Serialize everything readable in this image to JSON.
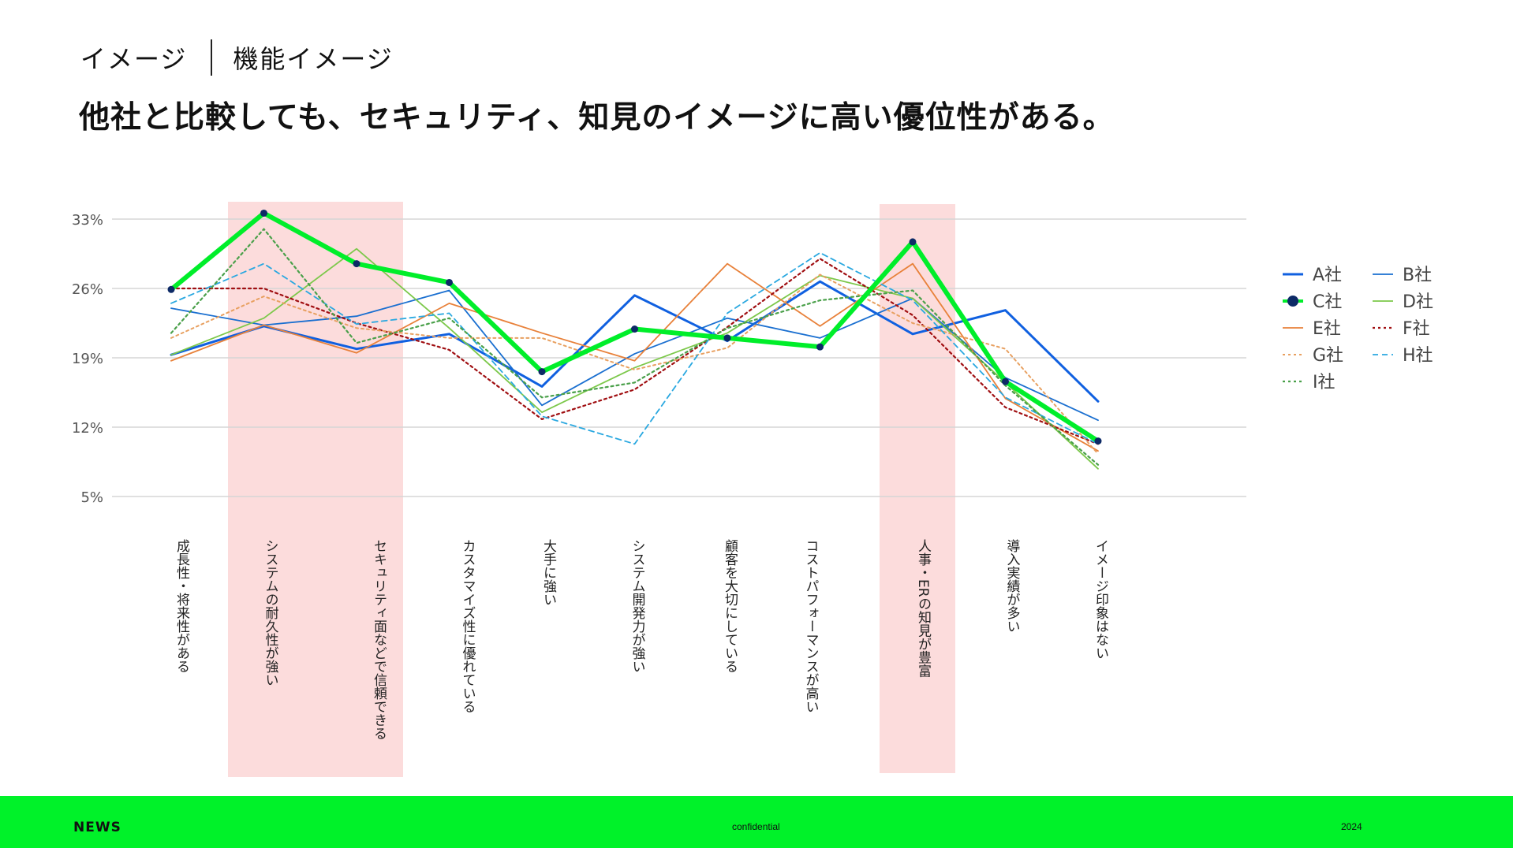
{
  "header": {
    "section": "イメージ",
    "subsection": "機能イメージ",
    "headline": "他社と比較しても、セキュリティ、知見のイメージに高い優位性がある。"
  },
  "footer": {
    "brand": "NEWS",
    "confidential": "confidential",
    "year": "2024"
  },
  "chart_data": {
    "type": "line",
    "title": "",
    "xlabel": "",
    "ylabel": "",
    "ylim": [
      0,
      34
    ],
    "yticks": [
      5,
      12,
      19,
      26,
      33
    ],
    "ytick_labels": [
      "5%",
      "12%",
      "19%",
      "26%",
      "33%"
    ],
    "grid": true,
    "legend_position": "right",
    "highlight_categories": [
      1,
      2,
      8
    ],
    "highlight_color": "#fcdcdc",
    "categories": [
      "成長性・将来性がある",
      "システムの耐久性が強い",
      "セキュリティ面などで信頼できる",
      "カスタマイズ性に優れている",
      "大手に強い",
      "システム開発力が強い",
      "顧客を大切にしている",
      "コストパフォーマンスが高い",
      "人事・ERの知見が豊富",
      "導入実績が多い",
      "イメージ印象はない"
    ],
    "series": [
      {
        "name": "A社",
        "color": "#1060e0",
        "width": 3,
        "dash": "",
        "markers": false,
        "values": [
          19.3,
          22.2,
          19.9,
          21.4,
          16.1,
          25.3,
          20.7,
          26.7,
          21.4,
          23.8,
          14.6
        ]
      },
      {
        "name": "B社",
        "color": "#1a6fd0",
        "width": 1.8,
        "dash": "",
        "markers": false,
        "values": [
          24.0,
          22.3,
          23.2,
          25.8,
          14.2,
          19.4,
          23.0,
          21.0,
          25.0,
          17.0,
          12.7
        ]
      },
      {
        "name": "C社",
        "color": "#00ee2a",
        "width": 6,
        "dash": "",
        "markers": true,
        "marker_color": "#0d2a66",
        "values": [
          25.9,
          33.6,
          28.5,
          26.6,
          17.6,
          21.9,
          21.0,
          20.1,
          30.7,
          16.6,
          10.6
        ]
      },
      {
        "name": "D社",
        "color": "#7cc84a",
        "width": 1.8,
        "dash": "",
        "markers": false,
        "values": [
          19.3,
          23.0,
          30.0,
          22.0,
          13.5,
          18.0,
          21.5,
          27.3,
          25.0,
          16.5,
          7.8
        ]
      },
      {
        "name": "E社",
        "color": "#e8813a",
        "width": 1.8,
        "dash": "",
        "markers": false,
        "values": [
          18.7,
          22.3,
          19.5,
          24.5,
          21.5,
          18.7,
          28.5,
          22.2,
          28.5,
          14.9,
          9.6
        ]
      },
      {
        "name": "F社",
        "color": "#a00f12",
        "width": 2.2,
        "dash": "3,4",
        "markers": false,
        "values": [
          26.0,
          26.0,
          22.5,
          19.8,
          12.8,
          15.8,
          22.1,
          29.0,
          23.3,
          14.0,
          10.3
        ]
      },
      {
        "name": "G社",
        "color": "#e8a060",
        "width": 2,
        "dash": "3,4",
        "markers": false,
        "values": [
          21.0,
          25.2,
          22.0,
          21.0,
          21.0,
          17.8,
          20.0,
          27.4,
          22.5,
          19.9,
          9.3
        ]
      },
      {
        "name": "H社",
        "color": "#2aa8e0",
        "width": 1.8,
        "dash": "7,5",
        "markers": false,
        "values": [
          24.5,
          28.5,
          22.4,
          23.5,
          13.1,
          10.3,
          23.5,
          29.6,
          24.8,
          15.0,
          10.3
        ]
      },
      {
        "name": "I社",
        "color": "#4aa04a",
        "width": 2.2,
        "dash": "3,4",
        "markers": false,
        "values": [
          21.5,
          32.0,
          20.5,
          23.0,
          15.0,
          16.5,
          22.0,
          24.8,
          25.8,
          16.2,
          8.2
        ]
      }
    ]
  }
}
